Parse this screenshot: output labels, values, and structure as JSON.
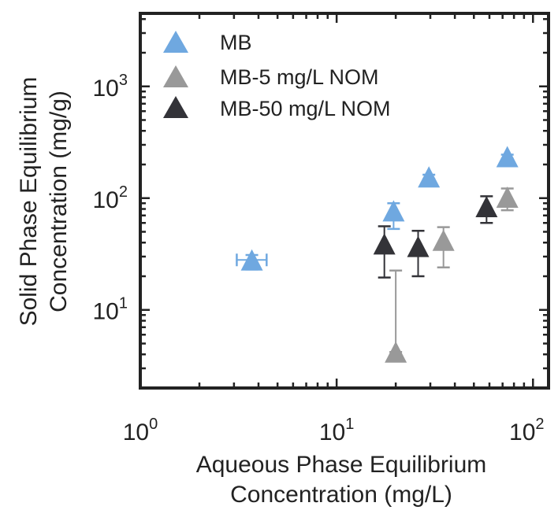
{
  "chart_data": {
    "type": "scatter",
    "title": "",
    "xlabel": [
      "Aqueous Phase Equilibrium",
      "Concentration (mg/L)"
    ],
    "ylabel": [
      "Solid Phase Equilibrium",
      "Concentration (mg/g)"
    ],
    "xscale": "log",
    "yscale": "log",
    "xlim": [
      1,
      120
    ],
    "ylim": [
      2,
      4500
    ],
    "x_ticks": [
      {
        "value": 1,
        "base": "10",
        "exp": "0"
      },
      {
        "value": 10,
        "base": "10",
        "exp": "1"
      },
      {
        "value": 100,
        "base": "10",
        "exp": "2"
      }
    ],
    "y_ticks": [
      {
        "value": 10,
        "base": "10",
        "exp": "1"
      },
      {
        "value": 100,
        "base": "10",
        "exp": "2"
      },
      {
        "value": 1000,
        "base": "10",
        "exp": "3"
      }
    ],
    "grid": false,
    "legend_position": "top-left",
    "series": [
      {
        "name": "MB",
        "color": "#6fa8e0",
        "marker": "triangle",
        "points": [
          {
            "x": 3.7,
            "y": 28,
            "yerr_low": 23,
            "yerr_high": 31,
            "xerr_low": 3.1,
            "xerr_high": 4.4
          },
          {
            "x": 19.5,
            "y": 77,
            "yerr_low": 53,
            "yerr_high": 90
          },
          {
            "x": 29.5,
            "y": 155,
            "yerr_low": 148,
            "yerr_high": 162
          },
          {
            "x": 74,
            "y": 235,
            "yerr_low": 225,
            "yerr_high": 245
          }
        ]
      },
      {
        "name": "MB-5 mg/L NOM",
        "color": "#999999",
        "marker": "triangle",
        "points": [
          {
            "x": 20,
            "y": 4.2,
            "yerr_low": 4.2,
            "yerr_high": 22.5
          },
          {
            "x": 35,
            "y": 42,
            "yerr_low": 24,
            "yerr_high": 55
          },
          {
            "x": 74,
            "y": 102,
            "yerr_low": 78,
            "yerr_high": 122
          }
        ]
      },
      {
        "name": "MB-50 mg/L NOM",
        "color": "#333338",
        "marker": "triangle",
        "points": [
          {
            "x": 17.5,
            "y": 39,
            "yerr_low": 19.5,
            "yerr_high": 56
          },
          {
            "x": 26,
            "y": 37,
            "yerr_low": 20,
            "yerr_high": 51
          },
          {
            "x": 58,
            "y": 84,
            "yerr_low": 60,
            "yerr_high": 104
          }
        ]
      }
    ]
  }
}
